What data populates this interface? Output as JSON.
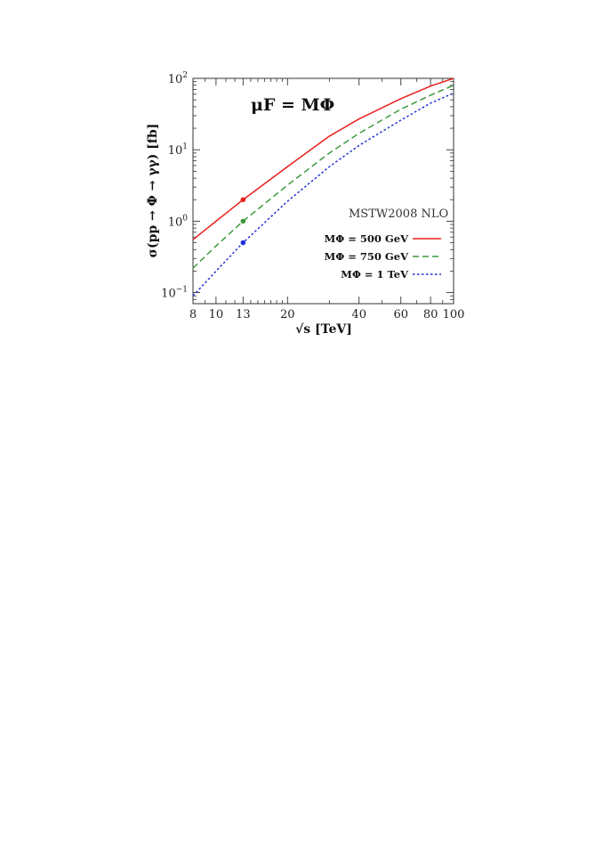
{
  "chart_data": {
    "type": "line",
    "title": "",
    "annotation": "μF = MΦ",
    "xlabel": "√s [TeV]",
    "ylabel": "σ(pp → Φ → γγ) [fb]",
    "xscale": "log",
    "yscale": "log",
    "xlim": [
      8,
      100
    ],
    "ylim": [
      0.07,
      100
    ],
    "xticks": [
      8,
      10,
      13,
      20,
      40,
      60,
      80,
      100
    ],
    "xtick_labels": [
      "8",
      "10",
      "13",
      "20",
      "40",
      "60",
      "80",
      "100"
    ],
    "yticks": [
      0.1,
      1,
      10,
      100
    ],
    "ytick_labels": [
      {
        "base": "10",
        "exp": "−1"
      },
      {
        "base": "10",
        "exp": "0"
      },
      {
        "base": "10",
        "exp": "1"
      },
      {
        "base": "10",
        "exp": "2"
      }
    ],
    "legend_title": "MSTW2008 NLO",
    "legend_position": "lower-right",
    "grid": false,
    "series": [
      {
        "name": "MΦ = 500 GeV",
        "color": "#e8201c",
        "style": "solid",
        "x": [
          8,
          10,
          13,
          20,
          30,
          40,
          60,
          80,
          100
        ],
        "y": [
          0.55,
          1.0,
          2.0,
          5.8,
          15.5,
          27,
          52,
          78,
          100
        ],
        "marker": {
          "x": 13,
          "y": 2.0
        }
      },
      {
        "name": "MΦ = 750 GeV",
        "color": "#3c9a3c",
        "style": "dashed",
        "x": [
          8,
          10,
          13,
          20,
          30,
          40,
          60,
          80,
          100
        ],
        "y": [
          0.22,
          0.45,
          1.0,
          3.2,
          9.0,
          17,
          37,
          58,
          80
        ],
        "marker": {
          "x": 13,
          "y": 1.0
        }
      },
      {
        "name": "MΦ = 1 TeV",
        "color": "#1f2fd8",
        "style": "dotted",
        "x": [
          8,
          10,
          13,
          20,
          30,
          40,
          60,
          80,
          100
        ],
        "y": [
          0.09,
          0.2,
          0.5,
          1.9,
          5.8,
          11.5,
          26,
          45,
          62
        ],
        "marker": {
          "x": 13,
          "y": 0.5
        }
      }
    ]
  }
}
